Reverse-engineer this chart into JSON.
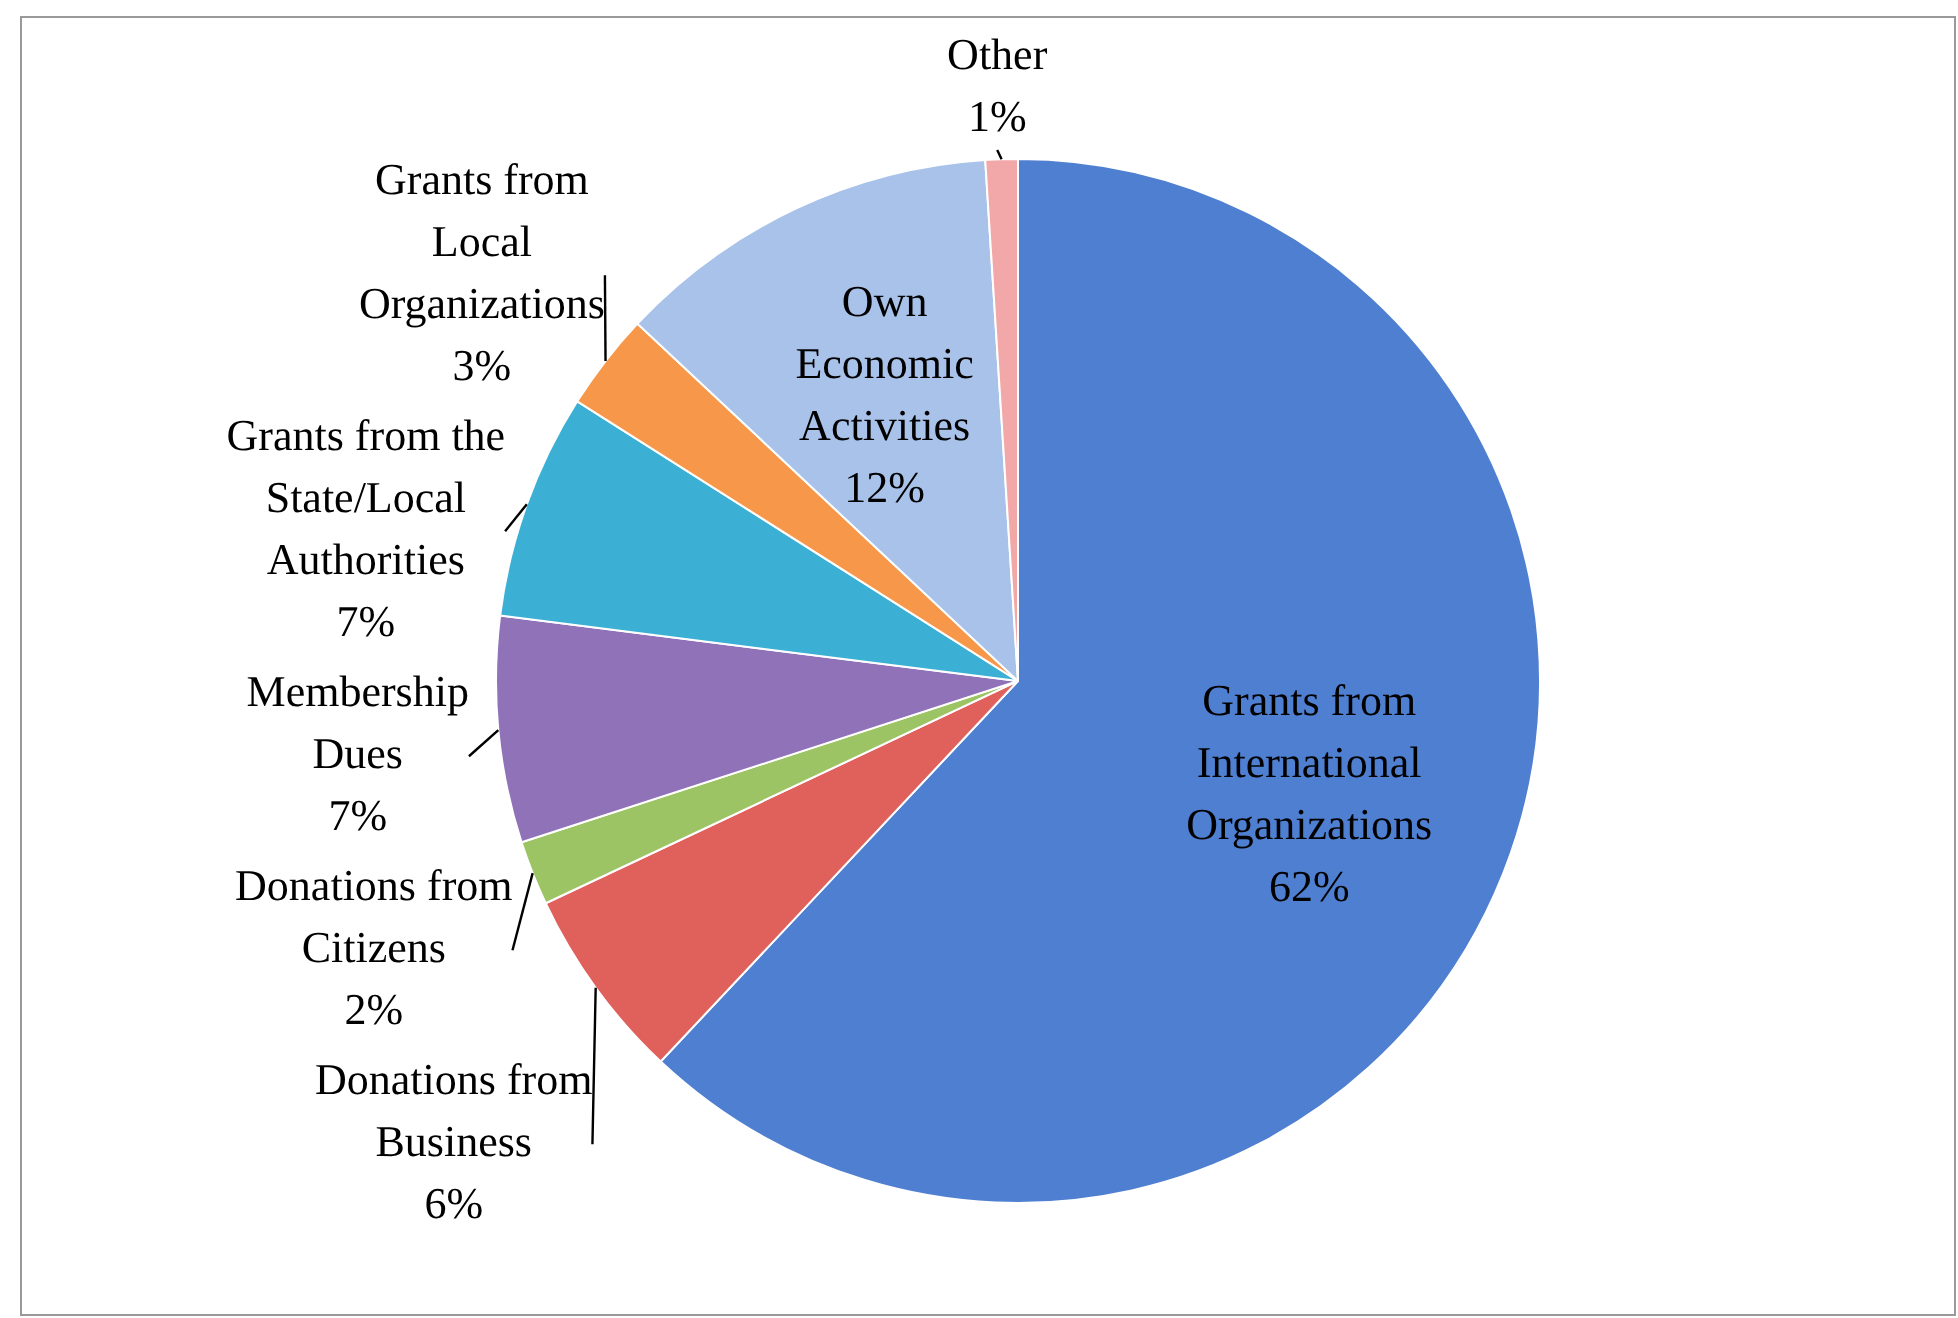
{
  "chart_data": {
    "type": "pie",
    "categories": [
      "Grants from International Organizations",
      "Donations from Business",
      "Donations from Citizens",
      "Membership Dues",
      "Grants from the State/Local Authorities",
      "Grants from Local Organizations",
      "Own Economic Activities",
      "Other"
    ],
    "values": [
      62,
      6,
      2,
      7,
      7,
      3,
      12,
      1
    ],
    "colors": [
      "#4f7fd0",
      "#e0605c",
      "#9cc464",
      "#8f72b8",
      "#3cb0d4",
      "#f7974a",
      "#a9c2ea",
      "#f2a8a8"
    ],
    "value_labels": [
      "62%",
      "6%",
      "2%",
      "7%",
      "7%",
      "3%",
      "12%",
      "1%"
    ],
    "legend": false
  }
}
